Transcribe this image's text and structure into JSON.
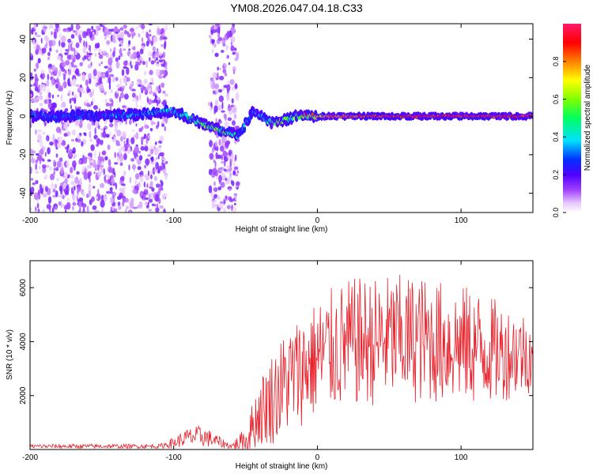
{
  "title": "YM08.2026.047.04.18.C33",
  "chart_data": [
    {
      "type": "heatmap",
      "xlabel": "Height of straight line (km)",
      "ylabel": "Frequency (Hz)",
      "xlim": [
        -200,
        150
      ],
      "ylim": [
        -50,
        48
      ],
      "xticks": [
        -200,
        -100,
        0,
        100
      ],
      "xtick_labels": [
        "-200",
        "-100",
        "0",
        "100"
      ],
      "yticks": [
        -40,
        -20,
        0,
        20,
        40
      ],
      "ytick_labels": [
        "-40",
        "-20",
        "0",
        "20",
        "40"
      ],
      "ridge": {
        "description": "main energy band near 0 Hz",
        "x": [
          -200,
          -150,
          -120,
          -100,
          -80,
          -65,
          -55,
          -45,
          -30,
          -15,
          0,
          50,
          100,
          150
        ],
        "freq": [
          0,
          0,
          1,
          3,
          -4,
          -8,
          -10,
          2,
          -4,
          0,
          0,
          0,
          0,
          0
        ],
        "amplitude": [
          0.3,
          0.3,
          0.35,
          0.4,
          0.5,
          0.55,
          0.4,
          0.35,
          0.55,
          0.7,
          0.8,
          0.95,
          0.95,
          0.95
        ]
      },
      "colorbar": {
        "label": "Normalized spectral amplitude",
        "range": [
          0,
          1
        ],
        "ticks": [
          0,
          0.2,
          0.4,
          0.6,
          0.8
        ],
        "tick_labels": [
          "0.0",
          "0.2",
          "0.4",
          "0.6",
          "0.8"
        ],
        "colors": [
          "#ffffff",
          "#cc88ff",
          "#7a00ff",
          "#0000ff",
          "#00ffff",
          "#00ff00",
          "#ffff00",
          "#ff8000",
          "#ff0000",
          "#ff1a6a"
        ]
      }
    },
    {
      "type": "line",
      "xlabel": "Height of straight line (km)",
      "ylabel": "SNR (10 * v/v)",
      "xlim": [
        -200,
        150
      ],
      "ylim": [
        0,
        7000
      ],
      "xticks": [
        -200,
        -100,
        0,
        100
      ],
      "xtick_labels": [
        "-200",
        "-100",
        "0",
        "100"
      ],
      "yticks": [
        2000,
        4000,
        6000
      ],
      "ytick_labels": [
        "2000",
        "4000",
        "6000"
      ],
      "color": "#e8202a",
      "envelope": {
        "x": [
          -200,
          -110,
          -100,
          -90,
          -80,
          -70,
          -60,
          -50,
          -45,
          -40,
          -30,
          -20,
          -10,
          0,
          10,
          20,
          30,
          40,
          50,
          60,
          70,
          80,
          90,
          100,
          110,
          120,
          130,
          150
        ],
        "mean": [
          120,
          120,
          250,
          450,
          500,
          300,
          120,
          350,
          900,
          1400,
          2000,
          2600,
          3000,
          3400,
          3700,
          3900,
          4000,
          4000,
          4100,
          4100,
          4100,
          4000,
          3950,
          3900,
          3800,
          3700,
          3600,
          3600
        ],
        "amp": [
          80,
          80,
          200,
          350,
          400,
          250,
          90,
          500,
          900,
          1300,
          1800,
          2000,
          2100,
          2200,
          2300,
          2400,
          2400,
          2400,
          2400,
          2400,
          2400,
          2300,
          2300,
          2200,
          2200,
          2000,
          1800,
          1500
        ]
      }
    }
  ]
}
